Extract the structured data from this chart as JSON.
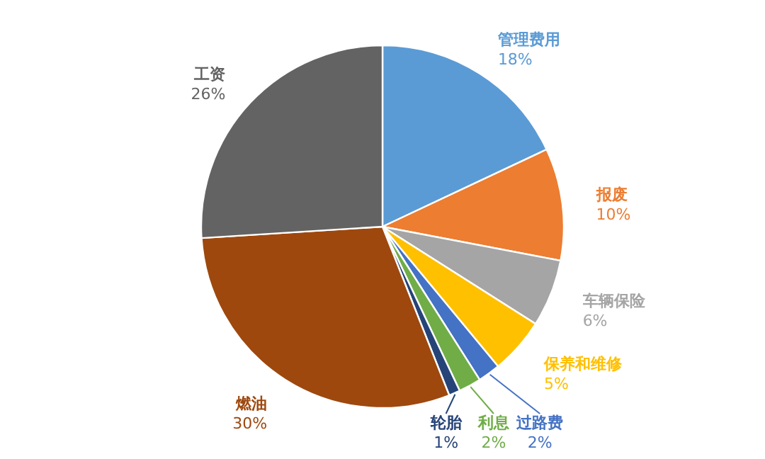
{
  "chart_data": {
    "type": "pie",
    "categories": [
      "管理费用",
      "报废",
      "车辆保险",
      "保养和维修",
      "过路费",
      "利息",
      "轮胎",
      "燃油",
      "工资"
    ],
    "values": [
      18,
      10,
      6,
      5,
      2,
      2,
      1,
      30,
      26
    ],
    "value_labels": [
      "18%",
      "10%",
      "6%",
      "5%",
      "2%",
      "2%",
      "1%",
      "30%",
      "26%"
    ],
    "colors": [
      "#5b9bd5",
      "#ed7d31",
      "#a5a5a5",
      "#ffc000",
      "#4472c4",
      "#70ad47",
      "#264478",
      "#9e480e",
      "#636363"
    ],
    "legend": false
  }
}
